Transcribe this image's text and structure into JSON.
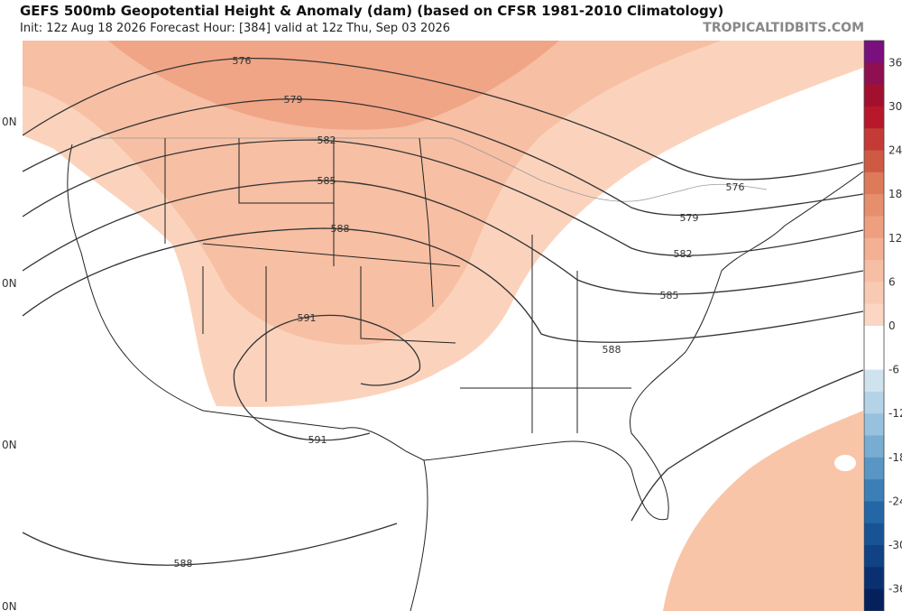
{
  "header": {
    "title": "GEFS 500mb Geopotential Height & Anomaly (dam) (based on CFSR 1981-2010 Climatology)",
    "init": "Init: 12z Aug 18 2026   Forecast Hour: [384]   valid at 12z Thu, Sep 03 2026",
    "watermark": "TROPICALTIDBITS.COM"
  },
  "map": {
    "contour_labels": [
      "576",
      "579",
      "582",
      "585",
      "588",
      "591",
      "591",
      "576",
      "579",
      "582",
      "585",
      "588",
      "588"
    ],
    "lat_labels": [
      "0N",
      "0N",
      "0N",
      "0N"
    ]
  },
  "colorbar": {
    "labels": [
      "36",
      "30",
      "24",
      "18",
      "12",
      "6",
      "0",
      "-6",
      "-12",
      "-18",
      "-24",
      "-30",
      "-36"
    ]
  }
}
